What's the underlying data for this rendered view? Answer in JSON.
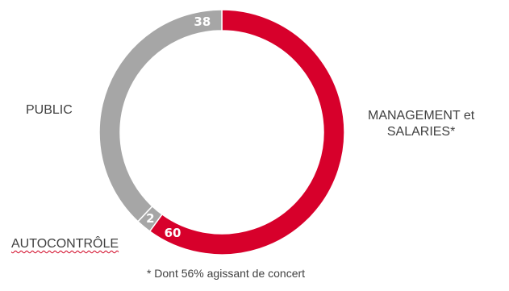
{
  "chart_data": {
    "type": "pie",
    "variant": "donut",
    "slices": [
      {
        "label": "MANAGEMENT et SALARIES*",
        "value": 60,
        "color": "#d7002b"
      },
      {
        "label": "AUTOCONTRÔLE",
        "value": 2,
        "color": "#a6a6a6"
      },
      {
        "label": "PUBLIC",
        "value": 38,
        "color": "#a6a6a6"
      }
    ],
    "legend": "outside labels",
    "footnote": "* Dont 56% agissant de concert"
  },
  "labels": {
    "public": "PUBLIC",
    "management_line1": "MANAGEMENT et",
    "management_line2": "SALARIES*",
    "autocontrole": "AUTOCONTRÔLE"
  }
}
